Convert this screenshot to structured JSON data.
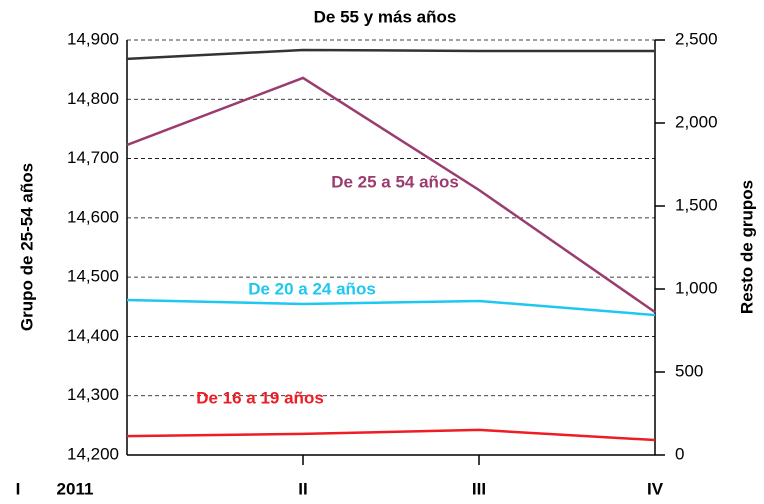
{
  "chart_data": {
    "type": "line",
    "categories": [
      "I",
      "II",
      "III",
      "IV"
    ],
    "year_label": "2011",
    "y_label": "Grupo de 25-54 años",
    "y2_label": "Resto de grupos",
    "ylim": [
      14200,
      14900
    ],
    "yticks": [
      {
        "value": 14200,
        "label": "14,200"
      },
      {
        "value": 14300,
        "label": "14,300"
      },
      {
        "value": 14400,
        "label": "14,400"
      },
      {
        "value": 14500,
        "label": "14,500"
      },
      {
        "value": 14600,
        "label": "14,600"
      },
      {
        "value": 14700,
        "label": "14,700"
      },
      {
        "value": 14800,
        "label": "14,800"
      },
      {
        "value": 14900,
        "label": "14,900"
      }
    ],
    "y2lim": [
      0,
      2500
    ],
    "y2ticks": [
      0,
      500,
      {
        "value": 1000,
        "label": "1,000"
      },
      {
        "value": 1500,
        "label": "1,500"
      },
      {
        "value": 2000,
        "label": "2,000"
      },
      {
        "value": 2500,
        "label": "2,500"
      }
    ],
    "grid": true,
    "series": [
      {
        "name": "De 55 y más años",
        "color": "#333333",
        "axis": "y2",
        "values": [
          2386,
          2440,
          2434,
          2434
        ]
      },
      {
        "name": "De 25 a 54 años",
        "color": "#9b3c6f",
        "values": [
          14723,
          14836,
          14647,
          14441
        ]
      },
      {
        "name": "De 20 a 24 años",
        "color": "#1ec8f0",
        "axis": "y2",
        "values": [
          934,
          910,
          928,
          843
        ]
      },
      {
        "name": "De 16 a 19 años",
        "color": "#ee1c25",
        "axis": "y2",
        "values": [
          114,
          127,
          151,
          90
        ]
      }
    ]
  }
}
